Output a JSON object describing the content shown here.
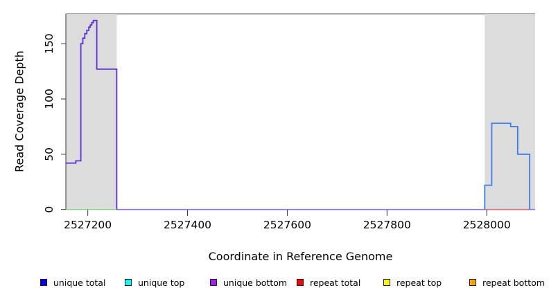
{
  "chart_data": {
    "type": "line",
    "style": "step-coverage",
    "xlabel": "Coordinate in Reference Genome",
    "ylabel": "Read Coverage Depth",
    "xlim": [
      2527156,
      2528097
    ],
    "ylim": [
      0,
      177
    ],
    "x_ticks": [
      "2527200",
      "2527400",
      "2527600",
      "2527800",
      "2528000"
    ],
    "x_tick_values": [
      2527200,
      2527400,
      2527600,
      2527800,
      2528000
    ],
    "y_ticks": [
      "0",
      "50",
      "100",
      "150"
    ],
    "y_tick_values": [
      0,
      50,
      100,
      150
    ],
    "grid": false,
    "legend_position": "bottom",
    "highlight_regions": [
      {
        "name": "left",
        "start": 2527156,
        "end": 2527258,
        "color": "#dcdcdc"
      },
      {
        "name": "right",
        "start": 2527996,
        "end": 2528097,
        "color": "#dcdcdc"
      }
    ],
    "series": [
      {
        "name": "baseline-left-green",
        "color": "#7fd87f",
        "width": 1.4,
        "points": [
          [
            2527156,
            0
          ],
          [
            2527258,
            0
          ]
        ]
      },
      {
        "name": "baseline-mid-violet",
        "color": "#8473ee",
        "width": 1.6,
        "points": [
          [
            2527258,
            0
          ],
          [
            2528097,
            0
          ]
        ]
      },
      {
        "name": "baseline-right-red",
        "color": "#ee6a6a",
        "width": 1.4,
        "points": [
          [
            2527996,
            0
          ],
          [
            2528086,
            0
          ]
        ]
      },
      {
        "name": "unique-coverage-left",
        "color": "#5b2ee6",
        "width": 1.8,
        "points": [
          [
            2527156,
            42
          ],
          [
            2527176,
            42
          ],
          [
            2527176,
            44
          ],
          [
            2527186,
            44
          ],
          [
            2527186,
            150
          ],
          [
            2527190,
            150
          ],
          [
            2527190,
            155
          ],
          [
            2527194,
            155
          ],
          [
            2527194,
            159
          ],
          [
            2527198,
            159
          ],
          [
            2527198,
            162
          ],
          [
            2527202,
            162
          ],
          [
            2527202,
            165
          ],
          [
            2527205,
            165
          ],
          [
            2527205,
            167
          ],
          [
            2527208,
            167
          ],
          [
            2527208,
            169
          ],
          [
            2527211,
            169
          ],
          [
            2527211,
            171
          ],
          [
            2527218,
            171
          ],
          [
            2527218,
            127
          ],
          [
            2527258,
            127
          ],
          [
            2527258,
            0
          ]
        ]
      },
      {
        "name": "unique-coverage-right",
        "color": "#3d7de8",
        "width": 1.8,
        "points": [
          [
            2527996,
            0
          ],
          [
            2527996,
            22
          ],
          [
            2528010,
            22
          ],
          [
            2528010,
            78
          ],
          [
            2528048,
            78
          ],
          [
            2528048,
            75
          ],
          [
            2528062,
            75
          ],
          [
            2528062,
            50
          ],
          [
            2528086,
            50
          ],
          [
            2528086,
            0
          ]
        ]
      }
    ],
    "legend": [
      {
        "label": "unique total",
        "color": "#0000ff"
      },
      {
        "label": "unique top",
        "color": "#00ffff"
      },
      {
        "label": "unique bottom",
        "color": "#a020f0"
      },
      {
        "label": "repeat total",
        "color": "#ff0000"
      },
      {
        "label": "repeat top",
        "color": "#ffff00"
      },
      {
        "label": "repeat bottom",
        "color": "#ffa500"
      }
    ],
    "axis_color": "#333333",
    "border_color": "#4d4d4d"
  }
}
